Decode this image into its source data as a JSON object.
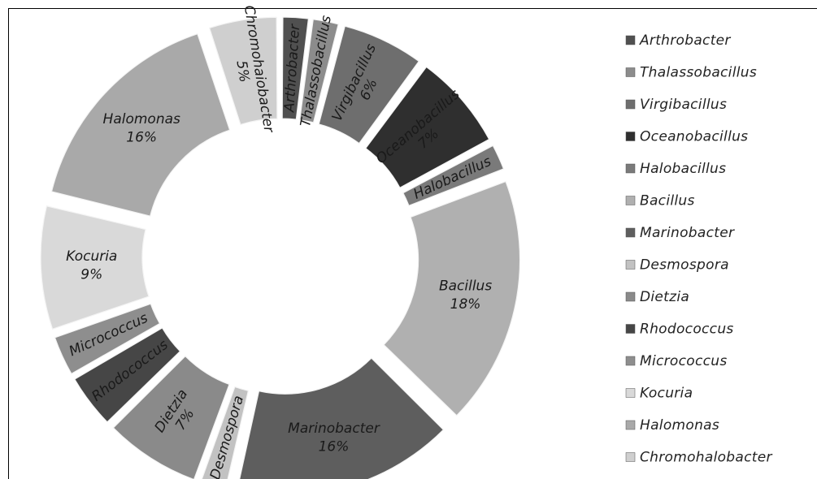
{
  "chart_data": {
    "type": "pie",
    "variant": "exploded-doughnut",
    "title": "",
    "legend_position": "right",
    "slices": [
      {
        "name": "Arthrobacter",
        "value": 2,
        "color": "#505050",
        "label": "Arthrobacter",
        "pct_label": ""
      },
      {
        "name": "Thalassobacillus",
        "value": 2,
        "color": "#8c8c8c",
        "label": "Thalassobacillus",
        "pct_label": ""
      },
      {
        "name": "Virgibacillus",
        "value": 6,
        "color": "#6e6e6e",
        "label": "Virgibacillus",
        "pct_label": "6%"
      },
      {
        "name": "Oceanobacillus",
        "value": 7,
        "color": "#2f2f2f",
        "label": "Oceanobacillus",
        "pct_label": "7%"
      },
      {
        "name": "Halobacillus",
        "value": 2,
        "color": "#7a7a7a",
        "label": "Halobacillus",
        "pct_label": ""
      },
      {
        "name": "Bacillus",
        "value": 18,
        "color": "#b0b0b0",
        "label": "Bacillus",
        "pct_label": "18%"
      },
      {
        "name": "Marinobacter",
        "value": 16,
        "color": "#5e5e5e",
        "label": "Marinobacter",
        "pct_label": "16%"
      },
      {
        "name": "Desmospora",
        "value": 2,
        "color": "#c2c2c2",
        "label": "Desmospora",
        "pct_label": ""
      },
      {
        "name": "Dietzia",
        "value": 7,
        "color": "#8a8a8a",
        "label": "Dietzia",
        "pct_label": "7%"
      },
      {
        "name": "Rhodococcus",
        "value": 4,
        "color": "#464646",
        "label": "Rhodococcus",
        "pct_label": ""
      },
      {
        "name": "Micrococcus",
        "value": 3,
        "color": "#8e8e8e",
        "label": "Micrococcus",
        "pct_label": ""
      },
      {
        "name": "Kocuria",
        "value": 9,
        "color": "#d9d9d9",
        "label": "Kocuria",
        "pct_label": "9%"
      },
      {
        "name": "Halomonas",
        "value": 16,
        "color": "#a9a9a9",
        "label": "Halomonas",
        "pct_label": "16%"
      },
      {
        "name": "Chromohalobacter",
        "value": 5,
        "color": "#cfcfcf",
        "label": "Chromohaiobacter",
        "pct_label": "5%"
      }
    ],
    "legend": [
      {
        "label": "Arthrobacter",
        "color": "#505050"
      },
      {
        "label": "Thalassobacillus",
        "color": "#8c8c8c"
      },
      {
        "label": "Virgibacillus",
        "color": "#6e6e6e"
      },
      {
        "label": "Oceanobacillus",
        "color": "#2f2f2f"
      },
      {
        "label": "Halobacillus",
        "color": "#7a7a7a"
      },
      {
        "label": "Bacillus",
        "color": "#b0b0b0"
      },
      {
        "label": "Marinobacter",
        "color": "#5e5e5e"
      },
      {
        "label": "Desmospora",
        "color": "#c2c2c2"
      },
      {
        "label": "Dietzia",
        "color": "#8a8a8a"
      },
      {
        "label": "Rhodococcus",
        "color": "#464646"
      },
      {
        "label": "Micrococcus",
        "color": "#8e8e8e"
      },
      {
        "label": "Kocuria",
        "color": "#d9d9d9"
      },
      {
        "label": "Halomonas",
        "color": "#a9a9a9"
      },
      {
        "label": "Chromohalobacter",
        "color": "#cfcfcf"
      }
    ]
  }
}
